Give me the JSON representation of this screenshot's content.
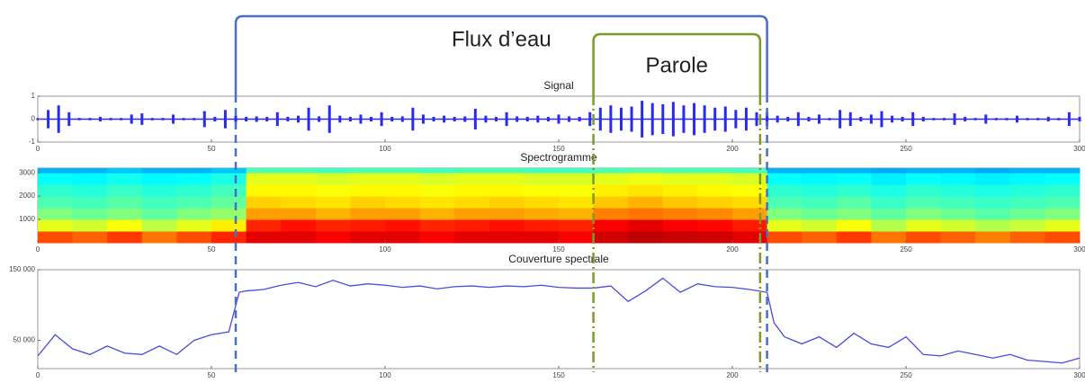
{
  "annotations": [
    {
      "text": "Flux d’eau",
      "start": 57,
      "end": 210,
      "color": "#4a6fc8"
    },
    {
      "text": "Parole",
      "start": 160,
      "end": 208,
      "color": "#7a9a2e"
    }
  ],
  "chart_data": [
    {
      "type": "waveform",
      "title": "Signal",
      "color": "#2a2af0",
      "xlim": [
        0,
        300
      ],
      "xticks": [
        0,
        50,
        100,
        150,
        200,
        250,
        300
      ],
      "ylim": [
        -1,
        1
      ],
      "yticks": [
        -1,
        0,
        1
      ],
      "x": [
        0,
        3,
        6,
        9,
        12,
        15,
        18,
        21,
        24,
        27,
        30,
        33,
        36,
        39,
        42,
        45,
        48,
        51,
        54,
        57,
        60,
        63,
        66,
        69,
        72,
        75,
        78,
        81,
        84,
        87,
        90,
        93,
        96,
        99,
        102,
        105,
        108,
        111,
        114,
        117,
        120,
        123,
        126,
        129,
        132,
        135,
        138,
        141,
        144,
        147,
        150,
        153,
        156,
        159,
        162,
        165,
        168,
        171,
        174,
        177,
        180,
        183,
        186,
        189,
        192,
        195,
        198,
        201,
        204,
        207,
        210,
        213,
        216,
        219,
        222,
        225,
        228,
        231,
        234,
        237,
        240,
        243,
        246,
        249,
        252,
        255,
        258,
        261,
        264,
        267,
        270,
        273,
        276,
        279,
        282,
        285,
        288,
        291,
        294,
        297,
        300
      ],
      "values": [
        0.05,
        0.4,
        0.6,
        0.3,
        0.05,
        0.05,
        0.1,
        0.05,
        0.05,
        0.2,
        0.25,
        0.05,
        0.05,
        0.2,
        0.05,
        0.05,
        0.35,
        0.1,
        0.4,
        0.15,
        0.1,
        0.12,
        0.1,
        0.3,
        0.1,
        0.15,
        0.5,
        0.12,
        0.6,
        0.15,
        0.1,
        0.2,
        0.1,
        0.3,
        0.1,
        0.12,
        0.5,
        0.2,
        0.1,
        0.15,
        0.1,
        0.12,
        0.45,
        0.15,
        0.1,
        0.3,
        0.12,
        0.1,
        0.15,
        0.1,
        0.2,
        0.12,
        0.1,
        0.3,
        0.5,
        0.6,
        0.5,
        0.55,
        0.8,
        0.7,
        0.65,
        0.75,
        0.6,
        0.7,
        0.6,
        0.5,
        0.55,
        0.4,
        0.5,
        0.3,
        0.3,
        0.15,
        0.1,
        0.3,
        0.1,
        0.2,
        0.05,
        0.4,
        0.3,
        0.1,
        0.2,
        0.35,
        0.15,
        0.1,
        0.3,
        0.1,
        0.05,
        0.05,
        0.25,
        0.1,
        0.05,
        0.2,
        0.05,
        0.05,
        0.15,
        0.05,
        0.05,
        0.1,
        0.05,
        0.3,
        0.1
      ]
    },
    {
      "type": "heatmap",
      "title": "Spectrogramme",
      "colormap": "jet",
      "xlim": [
        0,
        300
      ],
      "xticks": [
        0,
        50,
        100,
        150,
        200,
        250,
        300
      ],
      "ylim": [
        0,
        3200
      ],
      "yticks": [
        1000,
        2000,
        3000
      ],
      "bins": [
        0,
        10,
        20,
        30,
        40,
        50,
        60,
        70,
        80,
        90,
        100,
        110,
        120,
        130,
        140,
        150,
        160,
        170,
        180,
        190,
        200,
        210,
        220,
        230,
        240,
        250,
        260,
        270,
        280,
        290,
        300
      ],
      "y_bins": [
        0,
        500,
        1000,
        1500,
        2000,
        2500,
        3000,
        3200
      ],
      "values": [
        [
          0.8,
          0.78,
          0.82,
          0.76,
          0.8,
          0.84,
          0.9,
          0.9,
          0.88,
          0.9,
          0.9,
          0.88,
          0.9,
          0.9,
          0.9,
          0.88,
          0.92,
          0.94,
          0.93,
          0.92,
          0.9,
          0.8,
          0.78,
          0.82,
          0.76,
          0.8,
          0.78,
          0.75,
          0.78,
          0.8
        ],
        [
          0.6,
          0.58,
          0.62,
          0.56,
          0.6,
          0.64,
          0.84,
          0.86,
          0.84,
          0.85,
          0.86,
          0.84,
          0.85,
          0.86,
          0.85,
          0.84,
          0.88,
          0.9,
          0.88,
          0.87,
          0.85,
          0.6,
          0.58,
          0.62,
          0.55,
          0.6,
          0.58,
          0.55,
          0.57,
          0.6
        ],
        [
          0.5,
          0.48,
          0.5,
          0.47,
          0.5,
          0.52,
          0.72,
          0.72,
          0.7,
          0.72,
          0.72,
          0.7,
          0.72,
          0.72,
          0.71,
          0.7,
          0.75,
          0.76,
          0.75,
          0.74,
          0.72,
          0.5,
          0.48,
          0.5,
          0.47,
          0.5,
          0.48,
          0.46,
          0.48,
          0.5
        ],
        [
          0.45,
          0.44,
          0.46,
          0.44,
          0.45,
          0.47,
          0.67,
          0.66,
          0.65,
          0.67,
          0.66,
          0.65,
          0.66,
          0.67,
          0.66,
          0.65,
          0.68,
          0.7,
          0.68,
          0.67,
          0.66,
          0.45,
          0.44,
          0.46,
          0.43,
          0.45,
          0.44,
          0.43,
          0.44,
          0.45
        ],
        [
          0.42,
          0.41,
          0.43,
          0.41,
          0.42,
          0.44,
          0.63,
          0.63,
          0.62,
          0.63,
          0.63,
          0.62,
          0.63,
          0.63,
          0.62,
          0.62,
          0.64,
          0.65,
          0.64,
          0.63,
          0.62,
          0.42,
          0.41,
          0.42,
          0.4,
          0.42,
          0.41,
          0.4,
          0.41,
          0.42
        ],
        [
          0.38,
          0.37,
          0.39,
          0.37,
          0.38,
          0.4,
          0.6,
          0.6,
          0.59,
          0.6,
          0.6,
          0.59,
          0.6,
          0.6,
          0.59,
          0.59,
          0.6,
          0.61,
          0.6,
          0.6,
          0.59,
          0.38,
          0.37,
          0.38,
          0.36,
          0.38,
          0.37,
          0.36,
          0.37,
          0.38
        ],
        [
          0.3,
          0.3,
          0.32,
          0.3,
          0.3,
          0.32,
          0.45,
          0.45,
          0.44,
          0.45,
          0.45,
          0.44,
          0.45,
          0.45,
          0.44,
          0.44,
          0.45,
          0.46,
          0.45,
          0.45,
          0.44,
          0.3,
          0.3,
          0.3,
          0.29,
          0.3,
          0.3,
          0.29,
          0.3,
          0.3
        ]
      ]
    },
    {
      "type": "line",
      "title": "Couverture spectrale",
      "color": "#4a4ae0",
      "xlim": [
        0,
        300
      ],
      "xticks": [
        0,
        50,
        100,
        150,
        200,
        250,
        300
      ],
      "ylim": [
        10000,
        150000
      ],
      "yticks": [
        {
          "value": 50000,
          "label": "50 000"
        },
        {
          "value": 150000,
          "label": "150 000"
        }
      ],
      "x": [
        0,
        5,
        10,
        15,
        20,
        25,
        30,
        35,
        40,
        45,
        50,
        55,
        58,
        60,
        65,
        70,
        75,
        80,
        85,
        90,
        95,
        100,
        105,
        110,
        115,
        120,
        125,
        130,
        135,
        140,
        145,
        150,
        155,
        160,
        165,
        170,
        175,
        180,
        185,
        190,
        195,
        200,
        205,
        210,
        212,
        215,
        220,
        225,
        230,
        235,
        240,
        245,
        250,
        255,
        260,
        265,
        270,
        275,
        280,
        285,
        290,
        295,
        300
      ],
      "values": [
        28000,
        58000,
        38000,
        30000,
        42000,
        32000,
        30000,
        42000,
        30000,
        50000,
        58000,
        62000,
        118000,
        120000,
        122000,
        128000,
        132000,
        126000,
        135000,
        127000,
        130000,
        128000,
        125000,
        127000,
        123000,
        126000,
        127000,
        125000,
        127000,
        126000,
        128000,
        125000,
        124000,
        124000,
        127000,
        105000,
        120000,
        138000,
        118000,
        130000,
        126000,
        125000,
        122000,
        118000,
        75000,
        55000,
        45000,
        55000,
        40000,
        60000,
        45000,
        40000,
        55000,
        30000,
        28000,
        35000,
        30000,
        25000,
        30000,
        22000,
        20000,
        18000,
        25000
      ]
    }
  ]
}
